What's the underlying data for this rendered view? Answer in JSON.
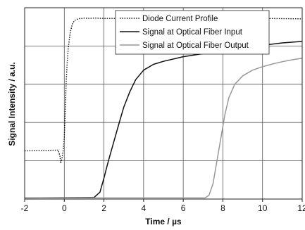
{
  "chart_data": {
    "type": "line",
    "title": "",
    "xlabel": "Time / µs",
    "ylabel": "Signal Intensity / a.u.",
    "xlim": [
      -2,
      12
    ],
    "ylim": [
      0,
      5
    ],
    "x_ticks": [
      -2,
      0,
      2,
      4,
      6,
      8,
      10,
      12
    ],
    "x_tick_labels": [
      "-2",
      "0",
      "2",
      "4",
      "6",
      "8",
      "10",
      "12"
    ],
    "y_gridlines": [
      1,
      2,
      3,
      4,
      5
    ],
    "y_tick_labels_shown": false,
    "grid": true,
    "legend_position": "top-right",
    "series": [
      {
        "name": "Diode Current Profile",
        "style": "dotted",
        "color": "#111111",
        "x": [
          -2,
          -0.3,
          -0.22,
          -0.18,
          -0.12,
          -0.05,
          0,
          0.05,
          0.1,
          0.15,
          0.2,
          0.3,
          0.4,
          0.5,
          0.6,
          0.7,
          0.8,
          0.9,
          1.0,
          1.2,
          1.5,
          2,
          4,
          6,
          8,
          10,
          12
        ],
        "y": [
          1.26,
          1.28,
          1.12,
          0.95,
          1.05,
          1.3,
          1.6,
          2.4,
          3.1,
          3.6,
          3.95,
          4.35,
          4.56,
          4.66,
          4.69,
          4.71,
          4.72,
          4.72,
          4.73,
          4.72,
          4.73,
          4.72,
          4.72,
          4.71,
          4.72,
          4.72,
          4.71
        ]
      },
      {
        "name": "Signal at Optical Fiber Input",
        "style": "solid",
        "color": "#111111",
        "x": [
          -2,
          1.5,
          1.8,
          2.0,
          2.2,
          2.5,
          2.8,
          3.0,
          3.3,
          3.6,
          4.0,
          4.5,
          5.0,
          6.0,
          7.0,
          8.0,
          9.0,
          10.0,
          11.0,
          12.0
        ],
        "y": [
          0.03,
          0.04,
          0.18,
          0.55,
          0.95,
          1.5,
          2.05,
          2.4,
          2.8,
          3.12,
          3.37,
          3.52,
          3.6,
          3.72,
          3.8,
          3.88,
          3.95,
          4.02,
          4.08,
          4.12
        ]
      },
      {
        "name": "Signal at Optical Fiber Output",
        "style": "solid",
        "color": "#999999",
        "x": [
          -2,
          7.1,
          7.3,
          7.5,
          7.7,
          7.9,
          8.1,
          8.3,
          8.6,
          9.0,
          9.5,
          10.0,
          10.5,
          11.0,
          11.5,
          12.0
        ],
        "y": [
          0.03,
          0.03,
          0.1,
          0.4,
          1.0,
          1.6,
          2.2,
          2.65,
          3.0,
          3.22,
          3.37,
          3.46,
          3.53,
          3.59,
          3.64,
          3.68
        ]
      }
    ]
  }
}
